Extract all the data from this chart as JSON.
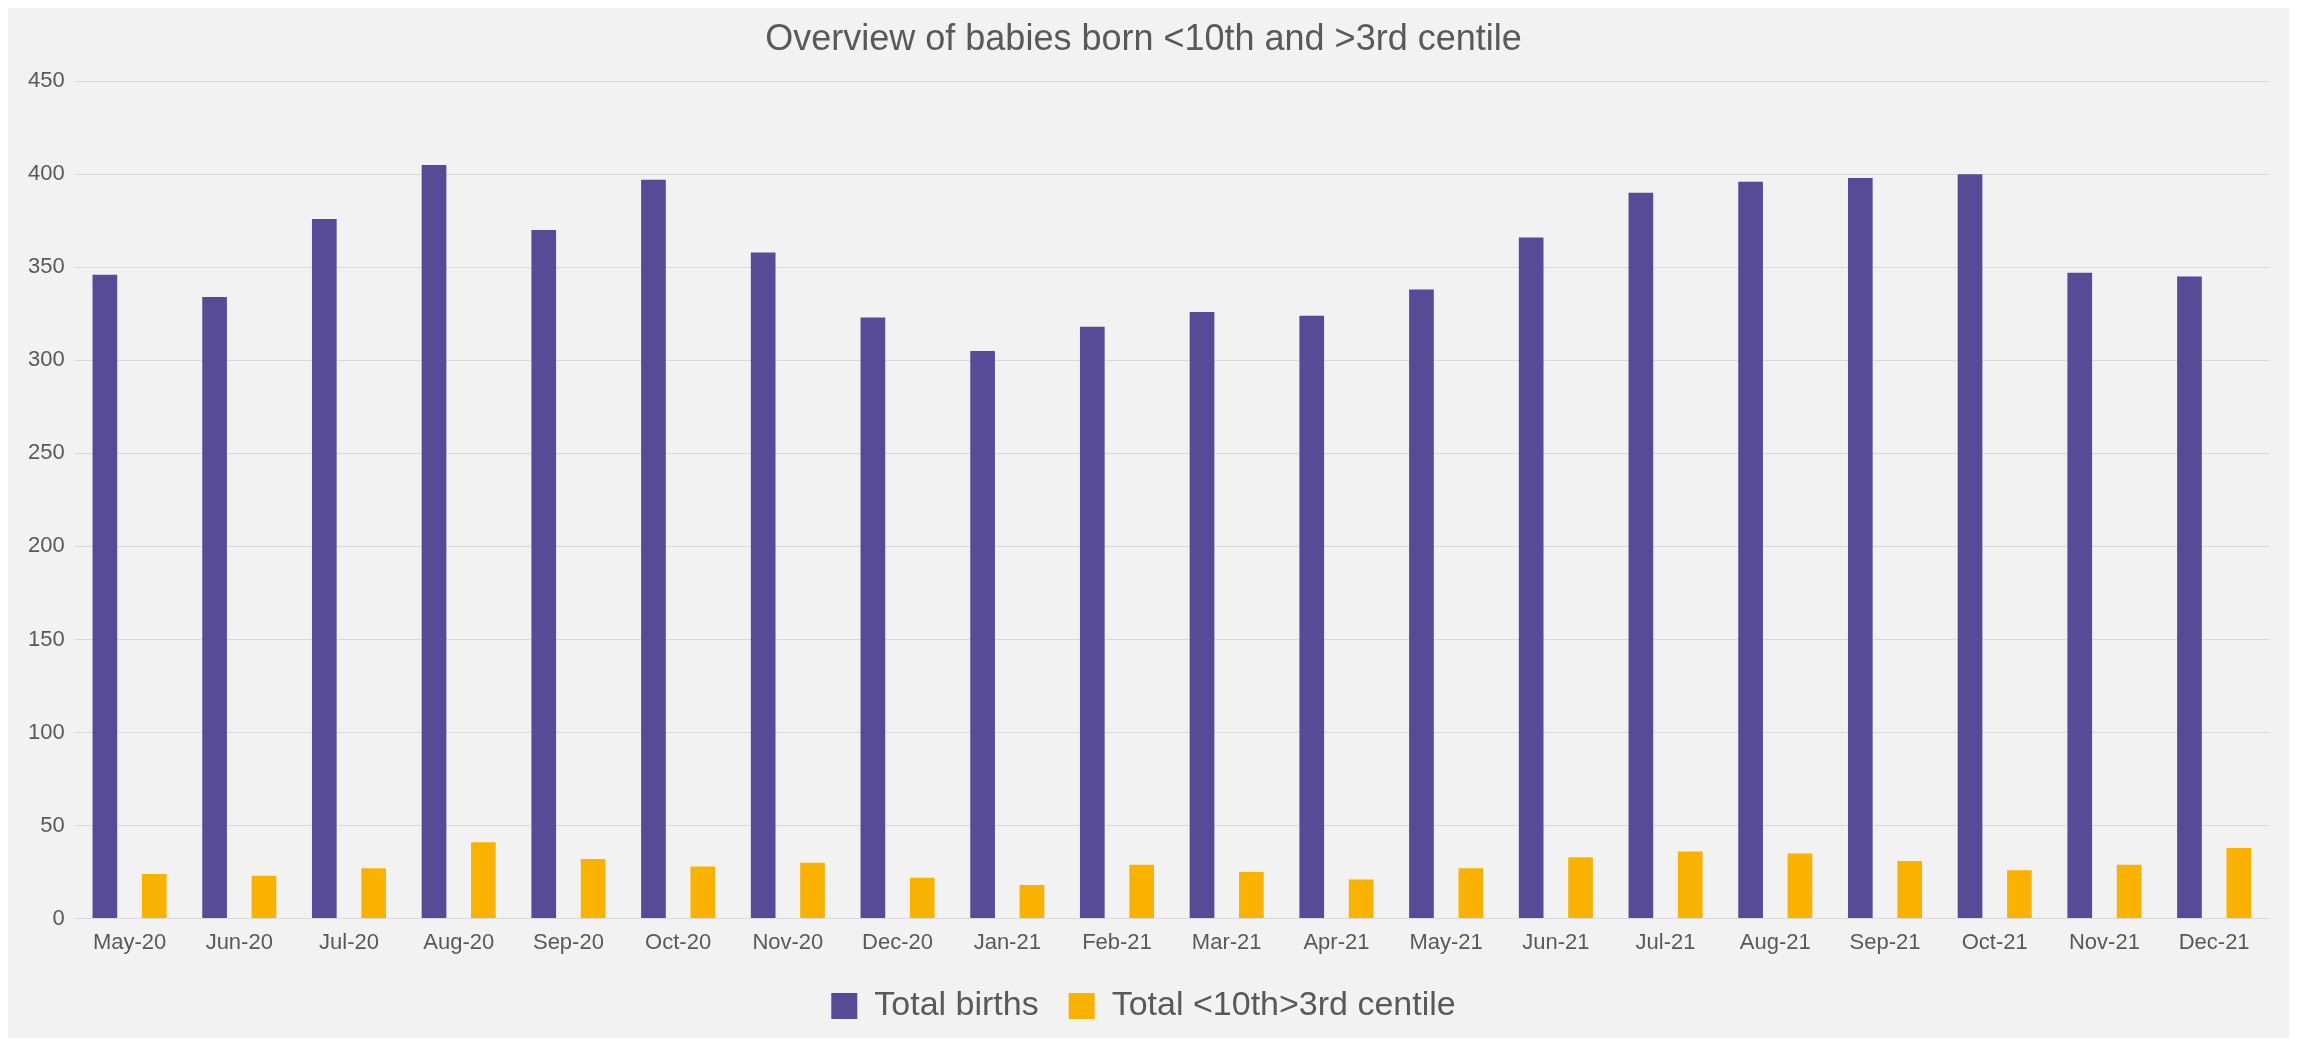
{
  "chart_data": {
    "type": "bar",
    "title": "Overview of babies born <10th and >3rd centile",
    "categories": [
      "May-20",
      "Jun-20",
      "Jul-20",
      "Aug-20",
      "Sep-20",
      "Oct-20",
      "Nov-20",
      "Dec-20",
      "Jan-21",
      "Feb-21",
      "Mar-21",
      "Apr-21",
      "May-21",
      "Jun-21",
      "Jul-21",
      "Aug-21",
      "Sep-21",
      "Oct-21",
      "Nov-21",
      "Dec-21"
    ],
    "series": [
      {
        "name": "Total births",
        "color": "#574a96",
        "values": [
          346,
          334,
          376,
          405,
          370,
          397,
          358,
          323,
          305,
          318,
          326,
          324,
          338,
          366,
          390,
          396,
          398,
          400,
          347,
          345
        ]
      },
      {
        "name": "Total <10th>3rd centile",
        "color": "#f9b200",
        "values": [
          24,
          23,
          27,
          41,
          32,
          28,
          30,
          22,
          18,
          29,
          25,
          21,
          27,
          33,
          36,
          35,
          31,
          26,
          29,
          38
        ]
      }
    ],
    "ylim": [
      0,
      450
    ],
    "yticks": [
      0,
      50,
      100,
      150,
      200,
      250,
      300,
      350,
      400,
      450
    ],
    "grid": "y",
    "legend": "bottom"
  }
}
